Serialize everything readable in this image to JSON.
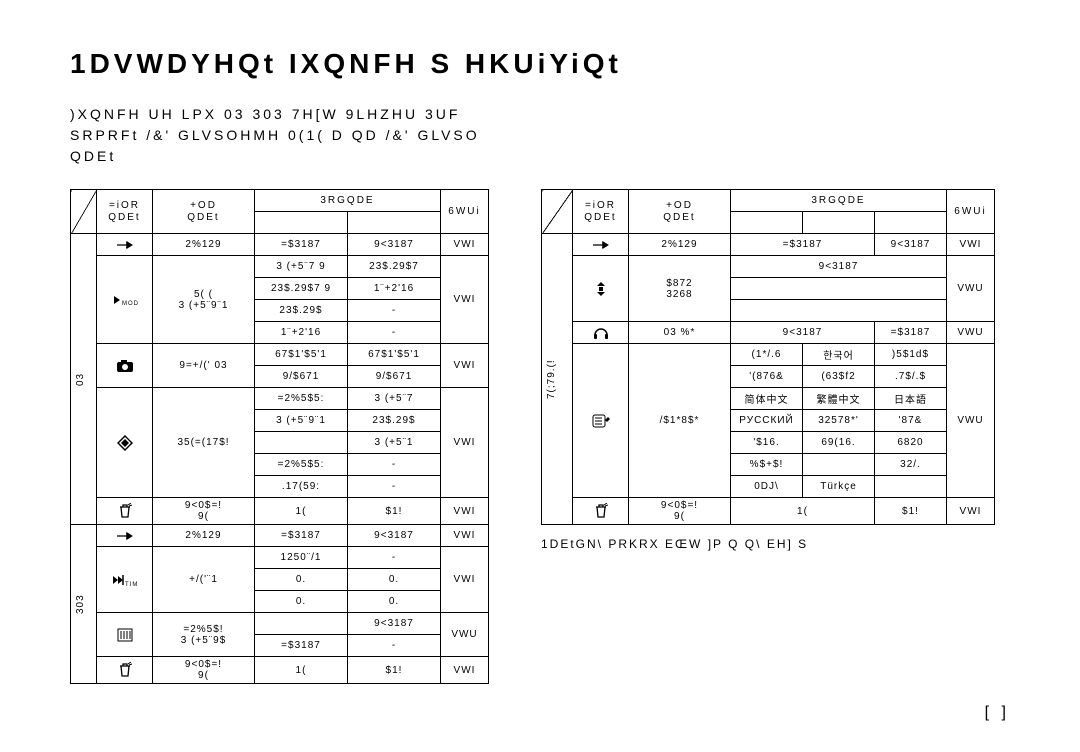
{
  "title": "1DVWDYHQt IXQNFH S HKUiYiQt",
  "subtitle": ")XQNFH UH LPX 03  303 7H[W 9LHZHU  3UF\nSRPRFt /&' GLVSOHMH 0(1( D QD /&' GLVSO\nQDEt",
  "page_num": "[  ]",
  "footnote": "1DEtGN\\ PRKRX EŒW ]P Q Q\\ EH] S",
  "headers": {
    "corner": "",
    "cislo": "=iOR\nQDEt",
    "hlad": "+OD\nQDEt",
    "hodn": "3RGQDE",
    "str": "6WUi"
  },
  "left": {
    "sections": [
      {
        "label": "03",
        "rows": [
          {
            "icon": "arrow-right",
            "hlad": "2%129",
            "h1": "=$3187",
            "h2": "9<3187",
            "str": "VWI",
            "span": 1
          },
          {
            "icon": "play-mode",
            "hlad": "5( (\n3 (+5¨9¨1",
            "rows4": [
              [
                "3 (+5¨7 9",
                "23$.29$7"
              ],
              [
                "23$.29$7 9",
                "1¨+2'16"
              ],
              [
                "23$.29$",
                ""
              ],
              [
                "1¨+2'16",
                ""
              ]
            ],
            "str": "VWI"
          },
          {
            "icon": "camera",
            "hlad": "9=+/(' 03",
            "rows2": [
              [
                "67$1'$5'1",
                "67$1'$5'1"
              ],
              [
                "9/$671",
                "9/$671"
              ]
            ],
            "str": "VWI"
          },
          {
            "icon": "diamond",
            "hlad": "35(=(17$!",
            "rows4b": [
              [
                "=2%5$5:",
                "3 (+5¨7"
              ],
              [
                "3 (+5¨9¨1",
                "23$.29$"
              ],
              [
                "",
                "3 (+5¨1"
              ],
              [
                "=2%5$5:",
                ""
              ],
              [
                ".17(59:",
                ""
              ]
            ],
            "str": "VWI"
          },
          {
            "icon": "trash",
            "hlad": "9<0$=!\n9(",
            "h1": "1(",
            "h2": "$1!",
            "str": "VWI",
            "span": 1
          }
        ]
      },
      {
        "label": "303",
        "rows": [
          {
            "icon": "arrow-right",
            "hlad": "2%129",
            "h1": "=$3187",
            "h2": "9<3187",
            "str": "VWI",
            "span": 1
          },
          {
            "icon": "time",
            "hlad": "+/('¨1",
            "rows3": [
              [
                "1250¨/1",
                ""
              ],
              [
                "0.",
                "0."
              ],
              [
                "0.",
                "0."
              ]
            ],
            "str": "VWI"
          },
          {
            "icon": "bars",
            "hlad": "=2%5$!\n3 (+5¨9$",
            "rows2b": [
              [
                "",
                "9<3187"
              ],
              [
                "=$3187",
                "-"
              ]
            ],
            "str": "VWU"
          },
          {
            "icon": "trash",
            "hlad": "9<0$=!\n9(",
            "h1": "1(",
            "h2": "$1!",
            "str": "VWI",
            "span": 1
          }
        ]
      }
    ]
  },
  "right": {
    "section_label": "7(;79.(!",
    "rows": [
      {
        "icon": "arrow-right",
        "hlad": "2%129",
        "cells": [
          "=$3187",
          "9<3187"
        ],
        "str": "VWI"
      },
      {
        "icon": "updown",
        "hlad": "$872\n3268",
        "cells": [
          "9<3187",
          "",
          ""
        ],
        "str": "VWU",
        "extra": 2
      },
      {
        "icon": "headphones",
        "hlad": "03   %*",
        "cells": [
          "9<3187",
          "=$3187"
        ],
        "str": "VWU"
      },
      {
        "icon": "lines",
        "hlad": "/$1*8$*",
        "langRows": [
          [
            "(1*/.6",
            "한국어",
            ")5$1d$"
          ],
          [
            "'(876&",
            "(63$f2",
            ".7$/.$"
          ],
          [
            "简体中文",
            "繁體中文",
            "日本語"
          ],
          [
            "РУССКИЙ",
            "32578*'",
            "'87&"
          ],
          [
            "'$16.",
            "69(16.",
            "6820"
          ],
          [
            "%$+$!",
            "",
            "32/."
          ],
          [
            "0DJ\\",
            "Türkçe",
            ""
          ]
        ],
        "str": "VWU"
      },
      {
        "icon": "trash",
        "hlad": "9<0$=!\n9(",
        "cells": [
          "1(",
          "$1!"
        ],
        "str": "VWI"
      }
    ]
  }
}
